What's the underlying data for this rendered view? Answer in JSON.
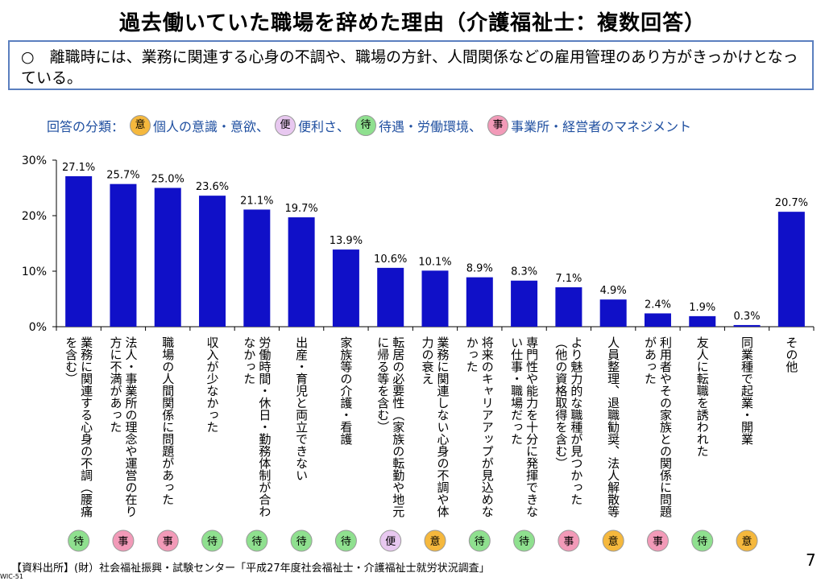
{
  "title": "過去働いていた職場を辞めた理由（介護福祉士：複数回答）",
  "note": "○　離職時には、業務に関連する心身の不調や、職場の方針、人間関係などの雇用管理のあり方がきっかけとなっている。",
  "legend": {
    "prefix": "回答の分類：",
    "items": [
      {
        "badge": "意",
        "label": "個人の意識・意欲、",
        "color": "#f5b83d"
      },
      {
        "badge": "便",
        "label": "便利さ、",
        "color": "#e8c8f0"
      },
      {
        "badge": "待",
        "label": "待遇・労働環境、",
        "color": "#8fe08f"
      },
      {
        "badge": "事",
        "label": "事業所・経営者のマネジメント",
        "color": "#f29ab8"
      }
    ]
  },
  "badge_colors": {
    "意": "#f5b83d",
    "便": "#e8c8f0",
    "待": "#8fe08f",
    "事": "#f29ab8"
  },
  "chart_data": {
    "type": "bar",
    "ylim": [
      0,
      30
    ],
    "yticks": [
      "0%",
      "10%",
      "20%",
      "30%"
    ],
    "bar_color": "#1010c8",
    "categories": [
      "業務に関連する心身の不調（腰痛を含む）",
      "法人・事業所の理念や運営の在り方に不満があった",
      "職場の人間関係に問題があった",
      "収入が少なかった",
      "労働時間・休日・勤務体制が合わなかった",
      "出産・育児と両立できない",
      "家族等の介護・看護",
      "転居の必要性（家族の転勤や地元に帰る等を含む）",
      "業務に関連しない心身の不調や体力の衰え",
      "将来のキャリアアップが見込めなかった",
      "専門性や能力を十分に発揮できない仕事・職場だった",
      "より魅力的な職種が見つかった（他の資格取得を含む）",
      "人員整理、退職勧奨、法人解散等",
      "利用者やその家族との関係に問題があった",
      "友人に転職を誘われた",
      "同業種で起業・開業",
      "その他"
    ],
    "label_lines": [
      [
        "業務に関連する心身の不調（腰痛",
        "を含む）"
      ],
      [
        "法人・事業所の理念や運営の在り",
        "方に不満があった"
      ],
      [
        "職場の人間関係に問題があった"
      ],
      [
        "収入が少なかった"
      ],
      [
        "労働時間・休日・勤務体制が合わ",
        "なかった"
      ],
      [
        "出産・育児と両立できない"
      ],
      [
        "家族等の介護・看護"
      ],
      [
        "転居の必要性（家族の転勤や地元",
        "に帰る等を含む）"
      ],
      [
        "業務に関連しない心身の不調や体",
        "力の衰え"
      ],
      [
        "将来のキャリアアップが見込めな",
        "かった"
      ],
      [
        "専門性や能力を十分に発揮できな",
        "い仕事・職場だった"
      ],
      [
        "より魅力的な職種が見つかった",
        "（他の資格取得を含む）"
      ],
      [
        "人員整理、退職勧奨、法人解散等"
      ],
      [
        "利用者やその家族との関係に問題",
        "があった"
      ],
      [
        "友人に転職を誘われた"
      ],
      [
        "同業種で起業・開業"
      ],
      [
        "その他"
      ]
    ],
    "values": [
      27.1,
      25.7,
      25.0,
      23.6,
      21.1,
      19.7,
      13.9,
      10.6,
      10.1,
      8.9,
      8.3,
      7.1,
      4.9,
      2.4,
      1.9,
      0.3,
      20.7
    ],
    "value_labels": [
      "27.1%",
      "25.7%",
      "25.0%",
      "23.6%",
      "21.1%",
      "19.7%",
      "13.9%",
      "10.6%",
      "10.1%",
      "8.9%",
      "8.3%",
      "7.1%",
      "4.9%",
      "2.4%",
      "1.9%",
      "0.3%",
      "20.7%"
    ],
    "classification": [
      "待",
      "事",
      "事",
      "待",
      "待",
      "待",
      "待",
      "便",
      "意",
      "待",
      "待",
      "事",
      "意",
      "事",
      "待",
      "意",
      ""
    ]
  },
  "source": "【資料出所】(財）社会福祉振興・試験センター「平成27年度社会福祉士・介護福祉士就労状況調査」",
  "slide_id": "WIC-51",
  "page_number": "7"
}
